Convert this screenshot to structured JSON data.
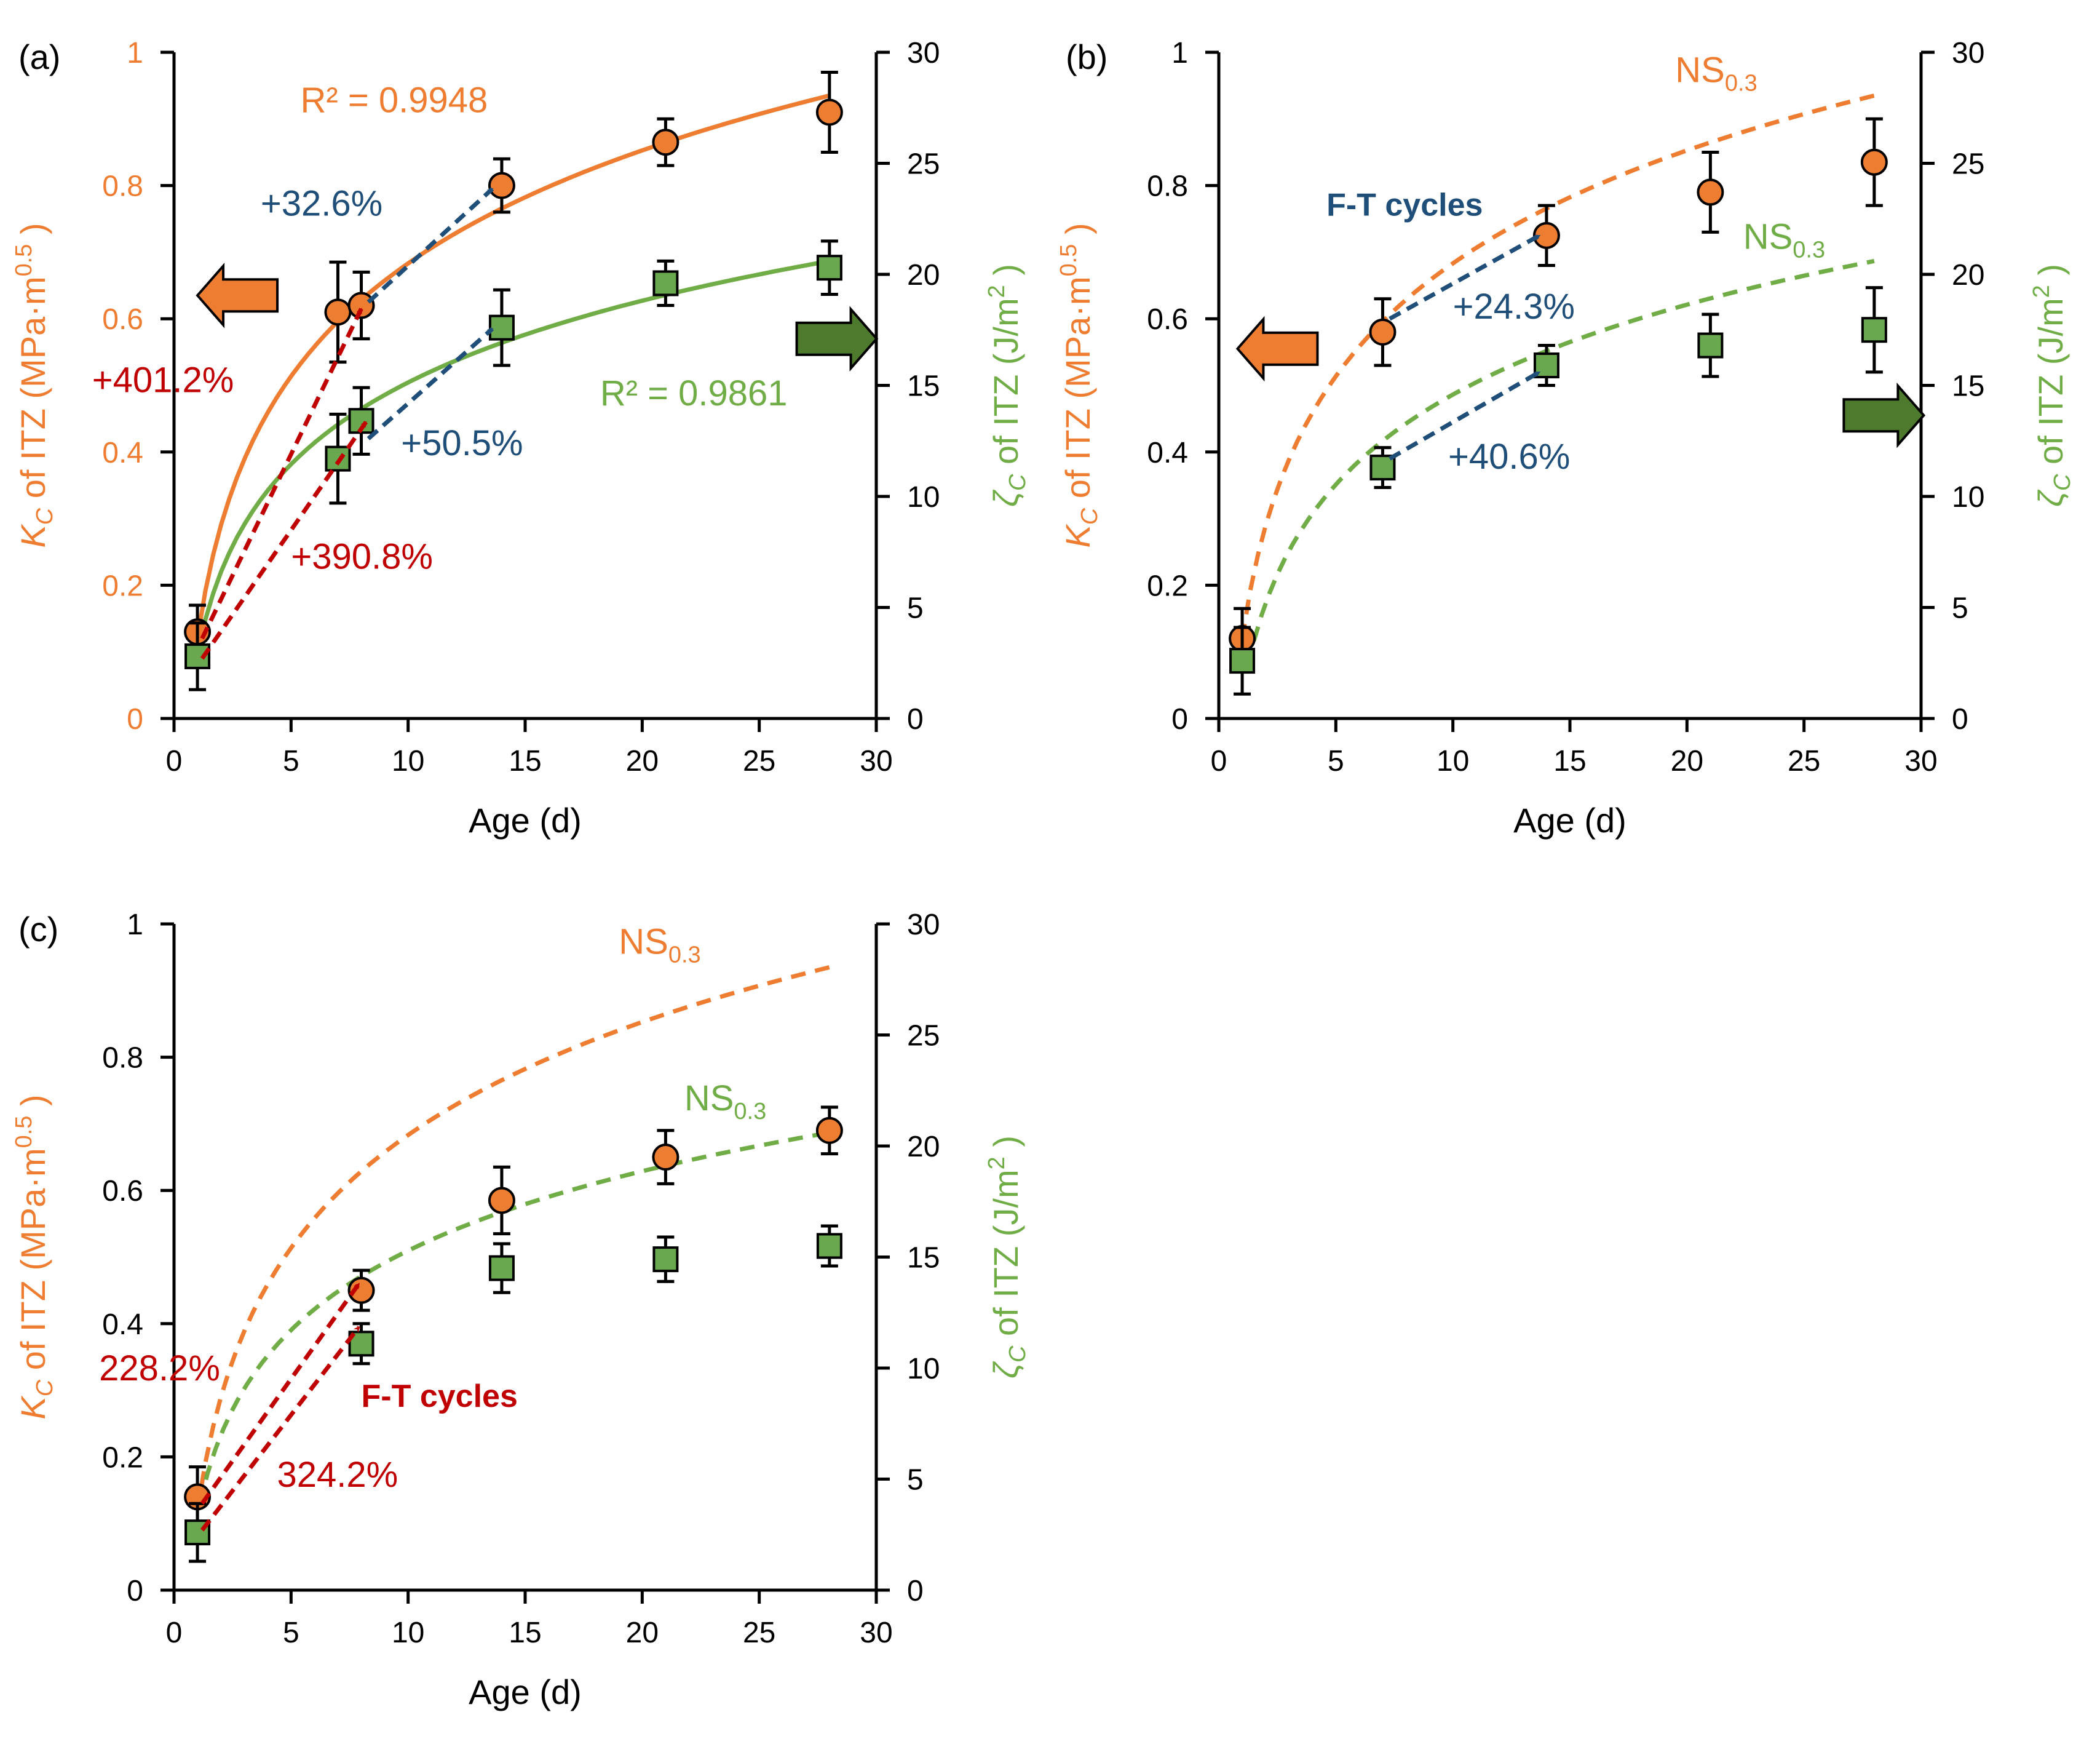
{
  "colors": {
    "orange": "#ee7d31",
    "green": "#70ad46",
    "orange_marker": "#ed7d31",
    "green_marker": "#6aa84f",
    "blue_annot": "#1f4e79",
    "red_annot": "#c00000",
    "axis": "#000000"
  },
  "chart_data": [
    {
      "type": "scatter",
      "panel_label": "(a)",
      "xlabel": "Age (d)",
      "ylabel_left": {
        "symbol": "K",
        "sub": "C",
        "text": " of ITZ (MPa·m",
        "sup": "0.5",
        "close": ")"
      },
      "ylabel_right": {
        "symbol": "ζ",
        "sub": "C",
        "text": " of ITZ (J/m",
        "sup": "2",
        "close": ")"
      },
      "xlim": [
        0,
        30
      ],
      "ylim_left": [
        0,
        1
      ],
      "ylim_right": [
        0,
        30
      ],
      "xticks": [
        "0",
        "5",
        "10",
        "15",
        "20",
        "25",
        "30"
      ],
      "yticks_left": [
        "0",
        "0.2",
        "0.4",
        "0.6",
        "0.8",
        "1"
      ],
      "yticks_right": [
        "0",
        "5",
        "10",
        "15",
        "20",
        "25",
        "30"
      ],
      "left_tick_color": "orange",
      "series": [
        {
          "axis": "left",
          "marker": "circle",
          "color": "orange_marker",
          "x": [
            1,
            7,
            8,
            14,
            21,
            28
          ],
          "y": [
            0.13,
            0.61,
            0.62,
            0.8,
            0.865,
            0.91
          ],
          "err": [
            0.04,
            0.075,
            0.05,
            0.04,
            0.035,
            0.06
          ]
        },
        {
          "axis": "right",
          "marker": "square",
          "color": "green_marker",
          "x": [
            1,
            7,
            8,
            14,
            21,
            28
          ],
          "y": [
            2.8,
            11.7,
            13.4,
            17.6,
            19.6,
            20.3
          ],
          "err": [
            1.5,
            2.0,
            1.5,
            1.7,
            1.0,
            1.2
          ]
        }
      ],
      "fits": [
        {
          "axis": "left",
          "style": "solid",
          "color": "orange",
          "x0": 1,
          "x1": 28,
          "y0": 0.12,
          "y1": 0.935
        },
        {
          "axis": "right",
          "style": "solid",
          "color": "green",
          "x0": 1,
          "x1": 28,
          "y0": 2.9,
          "y1": 20.6
        }
      ],
      "annotations": [
        {
          "text": "R² = 0.9948",
          "color": "orange",
          "x": 5.4,
          "yl": 0.91
        },
        {
          "text": "R² = 0.9861",
          "color": "green",
          "x": 18.2,
          "yl": 0.47
        },
        {
          "text": "+32.6%",
          "color": "blue_annot",
          "x": 3.7,
          "yl": 0.755
        },
        {
          "text": "+50.5%",
          "color": "blue_annot",
          "x": 9.7,
          "yl": 0.395
        },
        {
          "text": "+401.2%",
          "color": "red_annot",
          "x": -3.5,
          "yl": 0.49
        },
        {
          "text": "+390.8%",
          "color": "red_annot",
          "x": 5.0,
          "yl": 0.225
        }
      ],
      "arrows": [
        {
          "color": "blue_annot",
          "from": [
            8.3,
            0.625
          ],
          "to": [
            13.6,
            0.795
          ]
        },
        {
          "color": "blue_annot",
          "from": [
            8.3,
            0.42
          ],
          "to": [
            13.6,
            0.585
          ]
        },
        {
          "color": "red_annot",
          "from": [
            1.2,
            0.12
          ],
          "to": [
            8.0,
            0.615
          ]
        },
        {
          "color": "red_annot",
          "from": [
            1.2,
            0.09
          ],
          "to": [
            8.2,
            0.445
          ]
        }
      ],
      "block_arrows": [
        {
          "dir": "left",
          "color": "orange",
          "x": 1.0,
          "yl": 0.635
        },
        {
          "dir": "right",
          "color": "green",
          "x": 26.6,
          "yl": 0.57
        }
      ]
    },
    {
      "type": "scatter",
      "panel_label": "(b)",
      "xlabel": "Age (d)",
      "ylabel_left": {
        "symbol": "K",
        "sub": "C",
        "text": " of ITZ (MPa·m",
        "sup": "0.5",
        "close": ")"
      },
      "ylabel_right": {
        "symbol": "ζ",
        "sub": "C",
        "text": " of ITZ (J/m",
        "sup": "2",
        "close": ")"
      },
      "xlim": [
        0,
        30
      ],
      "ylim_left": [
        0,
        1
      ],
      "ylim_right": [
        0,
        30
      ],
      "xticks": [
        "0",
        "5",
        "10",
        "15",
        "20",
        "25",
        "30"
      ],
      "yticks_left": [
        "0",
        "0.2",
        "0.4",
        "0.6",
        "0.8",
        "1"
      ],
      "yticks_right": [
        "0",
        "5",
        "10",
        "15",
        "20",
        "25",
        "30"
      ],
      "left_tick_color": "black",
      "series": [
        {
          "axis": "left",
          "marker": "circle",
          "color": "orange_marker",
          "x": [
            1,
            7,
            14,
            21,
            28
          ],
          "y": [
            0.12,
            0.58,
            0.725,
            0.79,
            0.835
          ],
          "err": [
            0.045,
            0.05,
            0.045,
            0.06,
            0.065
          ]
        },
        {
          "axis": "right",
          "marker": "square",
          "color": "green_marker",
          "x": [
            1,
            7,
            14,
            21,
            28
          ],
          "y": [
            2.6,
            11.3,
            15.9,
            16.8,
            17.5
          ],
          "err": [
            1.5,
            0.9,
            0.9,
            1.4,
            1.9
          ]
        }
      ],
      "fits": [
        {
          "axis": "left",
          "style": "dashed",
          "color": "orange",
          "x0": 1,
          "x1": 28,
          "y0": 0.12,
          "y1": 0.935
        },
        {
          "axis": "right",
          "style": "dashed",
          "color": "green",
          "x0": 1.5,
          "x1": 28,
          "y0": 3.5,
          "y1": 20.6
        }
      ],
      "annotations": [
        {
          "text": "NS",
          "sub": "0.3",
          "color": "orange",
          "x": 19.5,
          "yl": 0.955
        },
        {
          "text": "NS",
          "sub": "0.3",
          "color": "green",
          "x": 22.4,
          "yl": 0.705
        },
        {
          "text": "F-T cycles",
          "bold": true,
          "color": "blue_annot",
          "x": 4.6,
          "yl": 0.755
        },
        {
          "text": "+24.3%",
          "color": "blue_annot",
          "x": 10.0,
          "yl": 0.6
        },
        {
          "text": "+40.6%",
          "color": "blue_annot",
          "x": 9.8,
          "yl": 0.375
        }
      ],
      "arrows": [
        {
          "color": "blue_annot",
          "from": [
            7.3,
            0.6
          ],
          "to": [
            13.7,
            0.725
          ]
        },
        {
          "color": "blue_annot",
          "from": [
            7.3,
            0.39
          ],
          "to": [
            13.7,
            0.52
          ]
        }
      ],
      "block_arrows": [
        {
          "dir": "left",
          "color": "orange",
          "x": 0.8,
          "yl": 0.555
        },
        {
          "dir": "right",
          "color": "green",
          "x": 26.7,
          "yl": 0.455
        }
      ]
    },
    {
      "type": "scatter",
      "panel_label": "(c)",
      "xlabel": "Age (d)",
      "ylabel_left": {
        "symbol": "K",
        "sub": "C",
        "text": " of ITZ (MPa·m",
        "sup": "0.5",
        "close": ")"
      },
      "ylabel_right": {
        "symbol": "ζ",
        "sub": "C",
        "text": " of ITZ (J/m",
        "sup": "2",
        "close": ")"
      },
      "xlim": [
        0,
        30
      ],
      "ylim_left": [
        0,
        1
      ],
      "ylim_right": [
        0,
        30
      ],
      "xticks": [
        "0",
        "5",
        "10",
        "15",
        "20",
        "25",
        "30"
      ],
      "yticks_left": [
        "0",
        "0.2",
        "0.4",
        "0.6",
        "0.8",
        "1"
      ],
      "yticks_right": [
        "0",
        "5",
        "10",
        "15",
        "20",
        "25",
        "30"
      ],
      "left_tick_color": "black",
      "series": [
        {
          "axis": "left",
          "marker": "circle",
          "color": "orange_marker",
          "x": [
            1,
            8,
            14,
            21,
            28
          ],
          "y": [
            0.14,
            0.45,
            0.585,
            0.65,
            0.69
          ],
          "err": [
            0.045,
            0.03,
            0.05,
            0.04,
            0.035
          ]
        },
        {
          "axis": "right",
          "marker": "square",
          "color": "green_marker",
          "x": [
            1,
            8,
            14,
            21,
            28
          ],
          "y": [
            2.6,
            11.1,
            14.5,
            14.9,
            15.5
          ],
          "err": [
            1.3,
            0.9,
            1.1,
            1.0,
            0.9
          ]
        }
      ],
      "fits": [
        {
          "axis": "left",
          "style": "dashed",
          "color": "orange",
          "x0": 1,
          "x1": 28,
          "y0": 0.12,
          "y1": 0.935
        },
        {
          "axis": "right",
          "style": "dashed",
          "color": "green",
          "x0": 1.1,
          "x1": 28,
          "y0": 3.9,
          "y1": 20.6
        }
      ],
      "annotations": [
        {
          "text": "NS",
          "sub": "0.3",
          "color": "orange",
          "x": 19.0,
          "yl": 0.955
        },
        {
          "text": "NS",
          "sub": "0.3",
          "color": "green",
          "x": 21.8,
          "yl": 0.72
        },
        {
          "text": "228.2%",
          "color": "red_annot",
          "x": -3.2,
          "yl": 0.315
        },
        {
          "text": "F-T cycles",
          "bold": true,
          "color": "red_annot",
          "x": 8.0,
          "yl": 0.275
        },
        {
          "text": "324.2%",
          "color": "red_annot",
          "x": 4.4,
          "yl": 0.155
        }
      ],
      "arrows": [
        {
          "color": "red_annot",
          "from": [
            1.2,
            0.13
          ],
          "to": [
            7.9,
            0.46
          ]
        },
        {
          "color": "red_annot",
          "from": [
            1.2,
            0.09
          ],
          "to": [
            7.9,
            0.395
          ]
        }
      ],
      "block_arrows": []
    }
  ]
}
